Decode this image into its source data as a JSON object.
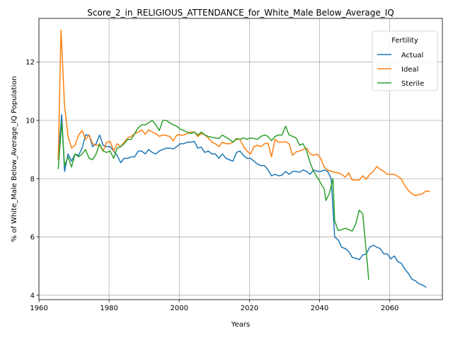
{
  "chart_data": {
    "type": "line",
    "title": "Score_2_in_RELIGIOUS_ATTENDANCE_for_White_Male Below_Average_IQ",
    "xlabel": "Years",
    "ylabel": "% of White_Male Below_Average_IQ Population",
    "xlim": [
      1960,
      2075
    ],
    "ylim": [
      3.85,
      13.5
    ],
    "xticks": [
      1960,
      1980,
      2000,
      2020,
      2040,
      2060
    ],
    "yticks": [
      4,
      6,
      8,
      10,
      12
    ],
    "grid": true,
    "legend": {
      "title": "Fertility",
      "placement": "top-right",
      "entries": [
        "Actual",
        "Ideal",
        "Sterile"
      ]
    },
    "series": [
      {
        "name": "Actual",
        "color": "#1f77b4",
        "points": [
          [
            1965.5,
            8.75
          ],
          [
            1966.5,
            10.2
          ],
          [
            1967.3,
            8.25
          ],
          [
            1968.3,
            8.85
          ],
          [
            1969.3,
            8.6
          ],
          [
            1970.3,
            8.85
          ],
          [
            1971.3,
            8.8
          ],
          [
            1972.3,
            9.05
          ],
          [
            1973.3,
            9.5
          ],
          [
            1974.3,
            9.5
          ],
          [
            1975.3,
            9.1
          ],
          [
            1976.3,
            9.2
          ],
          [
            1977.3,
            9.5
          ],
          [
            1978.3,
            9.15
          ],
          [
            1979.3,
            9.1
          ],
          [
            1980.3,
            9.1
          ],
          [
            1981.3,
            8.95
          ],
          [
            1982.3,
            8.8
          ],
          [
            1983.3,
            8.55
          ],
          [
            1984.3,
            8.7
          ],
          [
            1985.3,
            8.7
          ],
          [
            1986.3,
            8.75
          ],
          [
            1987.3,
            8.75
          ],
          [
            1988.3,
            8.95
          ],
          [
            1989.3,
            8.95
          ],
          [
            1990.3,
            8.85
          ],
          [
            1991.3,
            9.0
          ],
          [
            1992.3,
            8.9
          ],
          [
            1993.3,
            8.85
          ],
          [
            1994.3,
            8.95
          ],
          [
            1995.3,
            9.0
          ],
          [
            1996.3,
            9.05
          ],
          [
            1997.3,
            9.05
          ],
          [
            1998.3,
            9.02
          ],
          [
            1999.3,
            9.1
          ],
          [
            2000.3,
            9.2
          ],
          [
            2001.3,
            9.2
          ],
          [
            2002.3,
            9.25
          ],
          [
            2003.3,
            9.25
          ],
          [
            2004.3,
            9.28
          ],
          [
            2005.3,
            9.05
          ],
          [
            2006.3,
            9.08
          ],
          [
            2007.3,
            8.9
          ],
          [
            2008.3,
            8.95
          ],
          [
            2009.3,
            8.85
          ],
          [
            2010.3,
            8.85
          ],
          [
            2011.3,
            8.7
          ],
          [
            2012.3,
            8.85
          ],
          [
            2013.3,
            8.7
          ],
          [
            2014.3,
            8.65
          ],
          [
            2015.3,
            8.6
          ],
          [
            2016.3,
            8.9
          ],
          [
            2017.3,
            8.95
          ],
          [
            2018.3,
            8.8
          ],
          [
            2019.3,
            8.7
          ],
          [
            2020.3,
            8.7
          ],
          [
            2021.3,
            8.6
          ],
          [
            2022.3,
            8.5
          ],
          [
            2023.3,
            8.45
          ],
          [
            2024.3,
            8.45
          ],
          [
            2025.3,
            8.3
          ],
          [
            2026.3,
            8.1
          ],
          [
            2027.3,
            8.15
          ],
          [
            2028.3,
            8.1
          ],
          [
            2029.3,
            8.12
          ],
          [
            2030.3,
            8.25
          ],
          [
            2031.3,
            8.15
          ],
          [
            2032.3,
            8.25
          ],
          [
            2033.3,
            8.25
          ],
          [
            2034.3,
            8.22
          ],
          [
            2035.3,
            8.3
          ],
          [
            2036.3,
            8.25
          ],
          [
            2037.3,
            8.15
          ],
          [
            2038.3,
            8.3
          ],
          [
            2039.3,
            8.25
          ],
          [
            2040.3,
            8.25
          ],
          [
            2041.3,
            8.3
          ],
          [
            2042.3,
            8.25
          ],
          [
            2043.3,
            8.0
          ],
          [
            2044.3,
            6.0
          ],
          [
            2045.3,
            5.9
          ],
          [
            2046.3,
            5.65
          ],
          [
            2047.3,
            5.6
          ],
          [
            2048.3,
            5.5
          ],
          [
            2049.3,
            5.3
          ],
          [
            2050.3,
            5.27
          ],
          [
            2051.3,
            5.22
          ],
          [
            2052.3,
            5.38
          ],
          [
            2053.3,
            5.42
          ],
          [
            2054.3,
            5.65
          ],
          [
            2055.3,
            5.72
          ],
          [
            2056.3,
            5.65
          ],
          [
            2057.3,
            5.6
          ],
          [
            2058.3,
            5.42
          ],
          [
            2059.3,
            5.42
          ],
          [
            2060.3,
            5.25
          ],
          [
            2061.3,
            5.35
          ],
          [
            2062.3,
            5.15
          ],
          [
            2063.3,
            5.1
          ],
          [
            2064.3,
            4.9
          ],
          [
            2065.3,
            4.75
          ],
          [
            2066.3,
            4.55
          ],
          [
            2067.3,
            4.5
          ],
          [
            2068.3,
            4.4
          ],
          [
            2069.3,
            4.35
          ],
          [
            2070.3,
            4.28
          ]
        ]
      },
      {
        "name": "Ideal",
        "color": "#ff7f0e",
        "points": [
          [
            1965.5,
            8.65
          ],
          [
            1966.3,
            13.1
          ],
          [
            1967.3,
            10.5
          ],
          [
            1968.3,
            9.45
          ],
          [
            1969.3,
            9.05
          ],
          [
            1970.3,
            9.15
          ],
          [
            1971.3,
            9.5
          ],
          [
            1972.3,
            9.65
          ],
          [
            1973.3,
            9.35
          ],
          [
            1974.3,
            9.5
          ],
          [
            1975.3,
            9.2
          ],
          [
            1976.3,
            9.15
          ],
          [
            1977.3,
            9.15
          ],
          [
            1978.3,
            8.95
          ],
          [
            1979.3,
            9.25
          ],
          [
            1980.3,
            9.28
          ],
          [
            1981.3,
            8.95
          ],
          [
            1982.3,
            9.2
          ],
          [
            1983.3,
            9.1
          ],
          [
            1984.3,
            9.25
          ],
          [
            1985.3,
            9.4
          ],
          [
            1986.3,
            9.45
          ],
          [
            1987.3,
            9.55
          ],
          [
            1988.3,
            9.6
          ],
          [
            1989.3,
            9.68
          ],
          [
            1990.3,
            9.52
          ],
          [
            1991.3,
            9.68
          ],
          [
            1992.3,
            9.6
          ],
          [
            1993.3,
            9.55
          ],
          [
            1994.3,
            9.45
          ],
          [
            1995.3,
            9.5
          ],
          [
            1996.3,
            9.48
          ],
          [
            1997.3,
            9.45
          ],
          [
            1998.3,
            9.3
          ],
          [
            1999.3,
            9.5
          ],
          [
            2000.3,
            9.5
          ],
          [
            2001.3,
            9.5
          ],
          [
            2002.3,
            9.55
          ],
          [
            2003.3,
            9.6
          ],
          [
            2004.3,
            9.6
          ],
          [
            2005.3,
            9.45
          ],
          [
            2006.3,
            9.55
          ],
          [
            2007.3,
            9.5
          ],
          [
            2008.3,
            9.4
          ],
          [
            2009.3,
            9.25
          ],
          [
            2010.3,
            9.2
          ],
          [
            2011.3,
            9.1
          ],
          [
            2012.3,
            9.25
          ],
          [
            2013.3,
            9.2
          ],
          [
            2014.3,
            9.2
          ],
          [
            2015.3,
            9.25
          ],
          [
            2016.3,
            9.35
          ],
          [
            2017.3,
            9.35
          ],
          [
            2018.3,
            9.1
          ],
          [
            2019.3,
            8.95
          ],
          [
            2020.3,
            8.85
          ],
          [
            2021.3,
            9.1
          ],
          [
            2022.3,
            9.15
          ],
          [
            2023.3,
            9.1
          ],
          [
            2024.3,
            9.2
          ],
          [
            2025.3,
            9.22
          ],
          [
            2026.3,
            8.75
          ],
          [
            2027.3,
            9.35
          ],
          [
            2028.3,
            9.25
          ],
          [
            2029.3,
            9.25
          ],
          [
            2030.3,
            9.27
          ],
          [
            2031.3,
            9.2
          ],
          [
            2032.3,
            8.8
          ],
          [
            2033.3,
            8.92
          ],
          [
            2034.3,
            8.95
          ],
          [
            2035.3,
            9.0
          ],
          [
            2036.3,
            9.05
          ],
          [
            2037.3,
            8.85
          ],
          [
            2038.3,
            8.8
          ],
          [
            2039.3,
            8.85
          ],
          [
            2040.3,
            8.7
          ],
          [
            2041.3,
            8.4
          ],
          [
            2042.3,
            8.3
          ],
          [
            2043.3,
            8.25
          ],
          [
            2044.3,
            8.22
          ],
          [
            2045.3,
            8.2
          ],
          [
            2046.3,
            8.15
          ],
          [
            2047.3,
            8.05
          ],
          [
            2048.3,
            8.2
          ],
          [
            2049.3,
            7.95
          ],
          [
            2050.3,
            7.95
          ],
          [
            2051.3,
            7.95
          ],
          [
            2052.3,
            8.1
          ],
          [
            2053.3,
            7.98
          ],
          [
            2054.3,
            8.15
          ],
          [
            2055.3,
            8.25
          ],
          [
            2056.3,
            8.42
          ],
          [
            2057.3,
            8.32
          ],
          [
            2058.3,
            8.25
          ],
          [
            2059.3,
            8.15
          ],
          [
            2060.3,
            8.15
          ],
          [
            2061.3,
            8.15
          ],
          [
            2062.3,
            8.08
          ],
          [
            2063.3,
            8.0
          ],
          [
            2064.3,
            7.75
          ],
          [
            2065.3,
            7.6
          ],
          [
            2066.3,
            7.48
          ],
          [
            2067.3,
            7.42
          ],
          [
            2068.3,
            7.46
          ],
          [
            2069.3,
            7.48
          ],
          [
            2070.3,
            7.58
          ],
          [
            2071.3,
            7.56
          ]
        ]
      },
      {
        "name": "Sterile",
        "color": "#2ca02c",
        "points": [
          [
            1965.5,
            8.35
          ],
          [
            1966.5,
            9.95
          ],
          [
            1967.3,
            8.45
          ],
          [
            1968.3,
            8.75
          ],
          [
            1969.3,
            8.4
          ],
          [
            1970.3,
            8.85
          ],
          [
            1971.3,
            8.75
          ],
          [
            1972.3,
            8.85
          ],
          [
            1973.3,
            9.0
          ],
          [
            1974.3,
            8.7
          ],
          [
            1975.3,
            8.65
          ],
          [
            1976.3,
            8.85
          ],
          [
            1977.3,
            9.2
          ],
          [
            1978.3,
            8.95
          ],
          [
            1979.3,
            8.9
          ],
          [
            1980.3,
            8.95
          ],
          [
            1981.3,
            8.7
          ],
          [
            1982.3,
            9.05
          ],
          [
            1983.3,
            9.1
          ],
          [
            1984.3,
            9.2
          ],
          [
            1985.3,
            9.35
          ],
          [
            1986.3,
            9.35
          ],
          [
            1987.3,
            9.55
          ],
          [
            1988.3,
            9.75
          ],
          [
            1989.3,
            9.85
          ],
          [
            1990.3,
            9.85
          ],
          [
            1991.3,
            9.92
          ],
          [
            1992.3,
            10.0
          ],
          [
            1993.3,
            9.85
          ],
          [
            1994.3,
            9.65
          ],
          [
            1995.3,
            10.0
          ],
          [
            1996.3,
            10.0
          ],
          [
            1997.3,
            9.92
          ],
          [
            1998.3,
            9.85
          ],
          [
            1999.3,
            9.8
          ],
          [
            2000.3,
            9.7
          ],
          [
            2001.3,
            9.65
          ],
          [
            2002.3,
            9.6
          ],
          [
            2003.3,
            9.55
          ],
          [
            2004.3,
            9.6
          ],
          [
            2005.3,
            9.5
          ],
          [
            2006.3,
            9.6
          ],
          [
            2007.3,
            9.5
          ],
          [
            2008.3,
            9.45
          ],
          [
            2009.3,
            9.42
          ],
          [
            2010.3,
            9.4
          ],
          [
            2011.3,
            9.38
          ],
          [
            2012.3,
            9.5
          ],
          [
            2013.3,
            9.42
          ],
          [
            2014.3,
            9.35
          ],
          [
            2015.3,
            9.25
          ],
          [
            2016.3,
            9.38
          ],
          [
            2017.3,
            9.35
          ],
          [
            2018.3,
            9.4
          ],
          [
            2019.3,
            9.35
          ],
          [
            2020.3,
            9.4
          ],
          [
            2021.3,
            9.38
          ],
          [
            2022.3,
            9.35
          ],
          [
            2023.3,
            9.45
          ],
          [
            2024.3,
            9.5
          ],
          [
            2025.3,
            9.45
          ],
          [
            2026.3,
            9.3
          ],
          [
            2027.3,
            9.45
          ],
          [
            2028.3,
            9.5
          ],
          [
            2029.3,
            9.5
          ],
          [
            2030.3,
            9.8
          ],
          [
            2031.3,
            9.5
          ],
          [
            2032.3,
            9.45
          ],
          [
            2033.3,
            9.4
          ],
          [
            2034.3,
            9.15
          ],
          [
            2035.3,
            9.2
          ],
          [
            2036.3,
            8.95
          ],
          [
            2037.3,
            8.55
          ],
          [
            2038.3,
            8.25
          ],
          [
            2039.3,
            8.05
          ],
          [
            2040.3,
            7.85
          ],
          [
            2041.3,
            7.65
          ],
          [
            2041.8,
            7.25
          ],
          [
            2042.8,
            7.5
          ],
          [
            2043.8,
            8.0
          ],
          [
            2044.3,
            6.55
          ],
          [
            2045.3,
            6.22
          ],
          [
            2046.3,
            6.25
          ],
          [
            2047.3,
            6.3
          ],
          [
            2048.3,
            6.25
          ],
          [
            2049.3,
            6.2
          ],
          [
            2050.3,
            6.45
          ],
          [
            2051.3,
            6.92
          ],
          [
            2052.3,
            6.8
          ],
          [
            2053.3,
            5.5
          ],
          [
            2054.0,
            4.55
          ]
        ]
      }
    ]
  }
}
